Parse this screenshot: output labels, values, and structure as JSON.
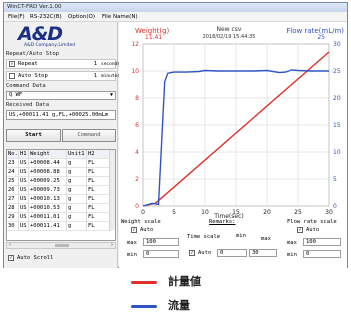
{
  "window": {
    "title": "WinCT-FRD Ver.1.00"
  },
  "menu": [
    "File(F)",
    "RS-232C(B)",
    "Option(O)",
    "File Name(N)"
  ],
  "logo": {
    "text": "A&D",
    "sub": "A&D Company,Limited"
  },
  "repeat_stop": {
    "label": "Repeat/Auto Stop",
    "repeat": {
      "label": "Repeat",
      "checked": true,
      "value": "1",
      "unit": "seconds"
    },
    "auto_stop": {
      "label": "Auto Stop",
      "checked": false,
      "value": "1",
      "unit": "minutes"
    }
  },
  "command": {
    "label": "Command Data",
    "value": "Q WF"
  },
  "received": {
    "label": "Received Data",
    "value": "US,+00011.41  g,FL,+00025.00mLm"
  },
  "buttons": {
    "start": "Start",
    "command": "Command"
  },
  "table": {
    "headers": [
      "No.",
      "H1",
      "Weight",
      "Unit1",
      "H2"
    ],
    "rows": [
      [
        "23",
        "US",
        "+00008.44",
        "g",
        "FL"
      ],
      [
        "24",
        "US",
        "+00008.88",
        "g",
        "FL"
      ],
      [
        "25",
        "US",
        "+00009.25",
        "g",
        "FL"
      ],
      [
        "26",
        "US",
        "+00009.73",
        "g",
        "FL"
      ],
      [
        "27",
        "US",
        "+00010.13",
        "g",
        "FL"
      ],
      [
        "28",
        "US",
        "+00010.53",
        "g",
        "FL"
      ],
      [
        "29",
        "US",
        "+00011.01",
        "g",
        "FL"
      ],
      [
        "30",
        "US",
        "+00011.41",
        "g",
        "FL"
      ]
    ]
  },
  "auto_scroll": {
    "label": "Auto Scroll",
    "checked": true
  },
  "chart_header": {
    "weight_label": "Weight(g)",
    "weight_value": "11.41",
    "file_name": "New csv",
    "timestamp": "2018/02/19 15:44:35",
    "flow_label": "Flow rate(mL/m)",
    "flow_value": "25"
  },
  "chart_data": {
    "type": "line",
    "xlabel": "Time(sec)",
    "xlim": [
      0,
      30
    ],
    "x_ticks": [
      "0",
      "5",
      "10",
      "15",
      "20",
      "25",
      "30"
    ],
    "ylim_left": [
      0,
      12
    ],
    "y_left_ticks": [
      "0",
      "2",
      "4",
      "6",
      "8",
      "10",
      "12"
    ],
    "ylim_right": [
      0,
      30
    ],
    "y_right_ticks": [
      "0",
      "5",
      "10",
      "15",
      "20",
      "25",
      "30"
    ],
    "grid": true,
    "series": [
      {
        "name": "計量値",
        "axis": "left",
        "color": "#e0302a",
        "x": [
          0,
          2,
          30
        ],
        "y": [
          0,
          0.2,
          11.41
        ]
      },
      {
        "name": "流量",
        "axis": "right",
        "color": "#2f55c4",
        "x": [
          0,
          1.5,
          2.5,
          3.5,
          4,
          5,
          7,
          9,
          10,
          12,
          15,
          18,
          20,
          22,
          23,
          24,
          25,
          27,
          30
        ],
        "y": [
          0,
          0.5,
          0.3,
          23,
          24.6,
          24.8,
          24.8,
          24.9,
          25.1,
          25,
          25,
          25,
          25.1,
          24.7,
          24.8,
          25.2,
          25.1,
          25,
          25
        ]
      }
    ]
  },
  "bottom": {
    "remarks": "Remarks:",
    "weight_scale": {
      "label": "Weight scale",
      "auto": "Auto",
      "max_label": "max",
      "max": "100",
      "min_label": "min",
      "min": "0"
    },
    "time_scale": {
      "label": "Time scale",
      "auto": "Auto",
      "min_label": "min",
      "max_label": "max",
      "min": "0",
      "max": "30"
    },
    "flow_scale": {
      "label": "Flow rate scale",
      "auto": "Auto",
      "max_label": "max",
      "max": "100",
      "min_label": "min",
      "min": "0"
    }
  },
  "legend": [
    {
      "label": "計量値",
      "color": "#e0302a"
    },
    {
      "label": "流量",
      "color": "#2f55c4"
    }
  ]
}
